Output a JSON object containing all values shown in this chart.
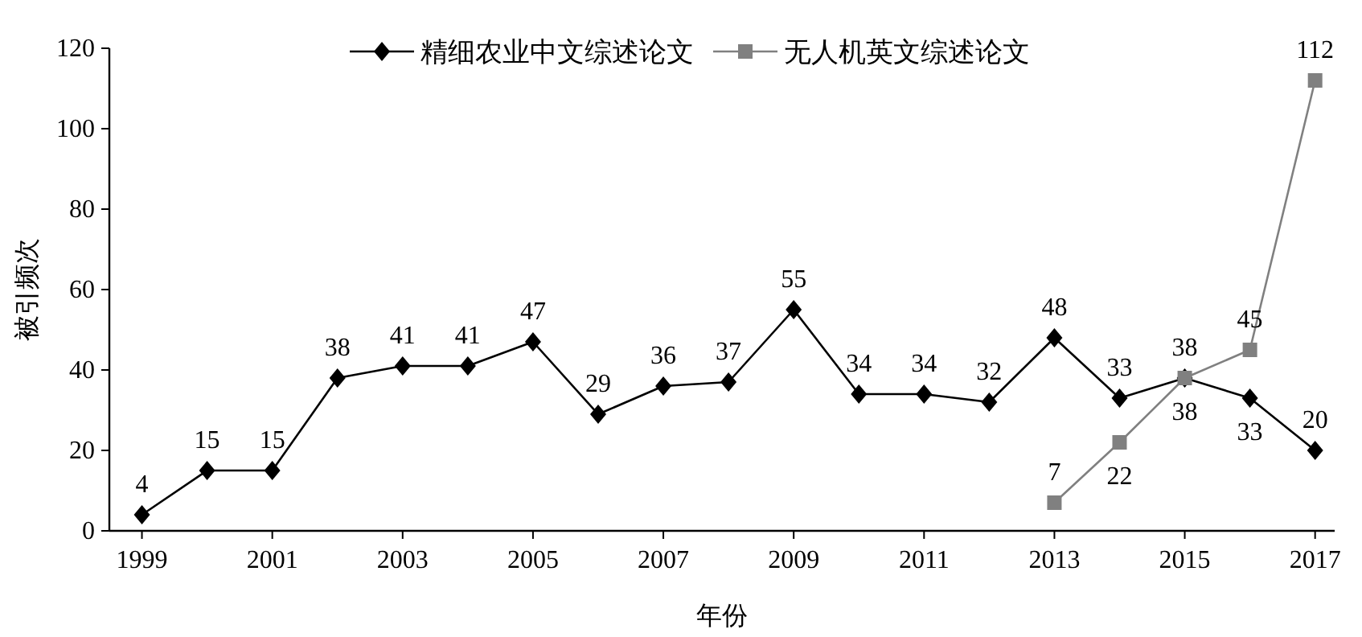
{
  "chart_data": {
    "type": "line",
    "xlabel": "年份",
    "ylabel": "被引频次",
    "x": [
      1999,
      2000,
      2001,
      2002,
      2003,
      2004,
      2005,
      2006,
      2007,
      2008,
      2009,
      2010,
      2011,
      2012,
      2013,
      2014,
      2015,
      2016,
      2017
    ],
    "series": [
      {
        "name": "精细农业中文综述论文",
        "color": "#000000",
        "marker": "diamond",
        "values": [
          4,
          15,
          15,
          38,
          41,
          41,
          47,
          29,
          36,
          37,
          55,
          34,
          34,
          32,
          48,
          33,
          38,
          33,
          20
        ]
      },
      {
        "name": "无人机英文综述论文",
        "color": "#808080",
        "marker": "square",
        "values": [
          null,
          null,
          null,
          null,
          null,
          null,
          null,
          null,
          null,
          null,
          null,
          null,
          null,
          null,
          7,
          22,
          38,
          45,
          112
        ]
      }
    ],
    "xlim": [
      1998.5,
      2017.3
    ],
    "ylim": [
      0,
      120
    ],
    "xticks": [
      1999,
      2001,
      2003,
      2005,
      2007,
      2009,
      2011,
      2013,
      2015,
      2017
    ],
    "yticks": [
      0,
      20,
      40,
      60,
      80,
      100,
      120
    ],
    "data_labels": true,
    "legend": "top",
    "line_style": "solid"
  }
}
